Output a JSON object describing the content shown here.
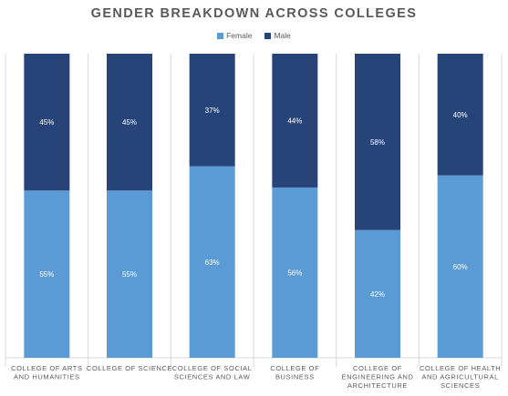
{
  "chart_data": {
    "type": "bar",
    "stacked": "percent",
    "title": "GENDER BREAKDOWN ACROSS COLLEGES",
    "legend_position": "top",
    "grid": false,
    "categories": [
      [
        "COLLEGE OF ARTS",
        "AND HUMANITIES"
      ],
      [
        "COLLEGE OF SCIENCE"
      ],
      [
        "COLLEGE OF SOCIAL",
        "SCIENCES AND LAW"
      ],
      [
        "COLLEGE OF",
        "BUSINESS"
      ],
      [
        "COLLEGE OF",
        "ENGINEERING AND",
        "ARCHITECTURE"
      ],
      [
        "COLLEGE OF HEALTH",
        "AND AGRICULTURAL",
        "SCIENCES"
      ]
    ],
    "series": [
      {
        "name": "Female",
        "color": "#5b9bd5",
        "values": [
          55,
          55,
          63,
          56,
          42,
          60
        ],
        "labels": [
          "55%",
          "55%",
          "63%",
          "56%",
          "42%",
          "60%"
        ]
      },
      {
        "name": "Male",
        "color": "#264478",
        "values": [
          45,
          45,
          37,
          44,
          58,
          40
        ],
        "labels": [
          "45%",
          "45%",
          "37%",
          "44%",
          "58%",
          "40%"
        ]
      }
    ],
    "ylim": [
      0,
      100
    ]
  }
}
